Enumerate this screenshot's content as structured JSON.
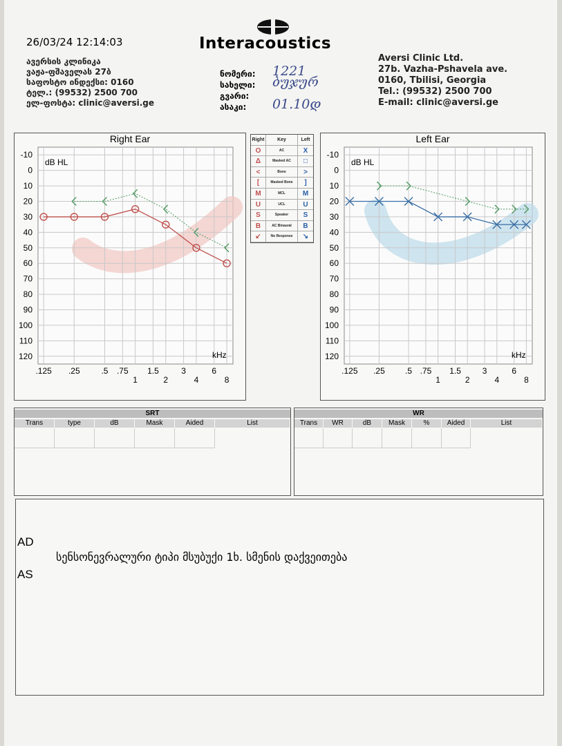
{
  "header": {
    "timestamp": "26/03/24 12:14:03",
    "logo": "Interacoustics",
    "clinic_ka": [
      "ავერსის კლინიკა",
      "ვაჟა-ფშაველას 27ბ",
      "საფოსტო ინდექსი: 0160",
      "ტელ.: (99532) 2500 700",
      "ელ-ფოსტა: clinic@aversi.ge"
    ],
    "patient_labels": [
      "ნომერი:",
      "სახელი:",
      "გვარი:",
      "ასაკი:"
    ],
    "patient_values": [
      "1221",
      "ბუჯურ",
      "",
      "01.10დ"
    ],
    "clinic_en": [
      "Aversi Clinic Ltd.",
      "27b. Vazha-Pshavela ave.",
      "0160, Tbilisi, Georgia",
      "Tel.: (99532) 2500 700",
      "E-mail: clinic@aversi.ge"
    ]
  },
  "chart_data": [
    {
      "type": "line",
      "title": "Right Ear",
      "y_label": "dB HL",
      "x_label": "kHz",
      "xscale": "log",
      "y_inverted": true,
      "grid": true,
      "xlim": [
        0.11,
        9.2
      ],
      "ylim": [
        -15,
        125
      ],
      "xticks": [
        {
          "value": 0.125,
          "label": ".125"
        },
        {
          "value": 0.25,
          "label": ".25"
        },
        {
          "value": 0.5,
          "label": ".5"
        },
        {
          "value": 0.75,
          "label": ".75"
        },
        1,
        1.5,
        2,
        3,
        4,
        6,
        8
      ],
      "yticks": [
        -10,
        0,
        10,
        20,
        30,
        40,
        50,
        60,
        70,
        80,
        90,
        100,
        110,
        120
      ],
      "band_color": "#f2c9c6",
      "series": [
        {
          "color": "#c0504d",
          "marker": "circle",
          "dashed": false,
          "x": [
            0.125,
            0.25,
            0.5,
            1,
            2,
            4,
            8
          ],
          "values": [
            30,
            30,
            30,
            25,
            35,
            50,
            60
          ]
        },
        {
          "color": "#4f9a62",
          "marker": "chevron-left",
          "dashed": true,
          "x": [
            0.25,
            0.5,
            1,
            2,
            4,
            8
          ],
          "values": [
            20,
            20,
            15,
            25,
            40,
            50
          ]
        }
      ]
    },
    {
      "type": "line",
      "title": "Left Ear",
      "y_label": "dB HL",
      "x_label": "kHz",
      "xscale": "log",
      "y_inverted": true,
      "grid": true,
      "xlim": [
        0.11,
        9.2
      ],
      "ylim": [
        -15,
        125
      ],
      "xticks": [
        {
          "value": 0.125,
          "label": ".125"
        },
        {
          "value": 0.25,
          "label": ".25"
        },
        {
          "value": 0.5,
          "label": ".5"
        },
        {
          "value": 0.75,
          "label": ".75"
        },
        1,
        1.5,
        2,
        3,
        4,
        6,
        8
      ],
      "yticks": [
        -10,
        0,
        10,
        20,
        30,
        40,
        50,
        60,
        70,
        80,
        90,
        100,
        110,
        120
      ],
      "band_color": "#bfdceb",
      "series": [
        {
          "color": "#3a6ea5",
          "marker": "x",
          "dashed": false,
          "x": [
            0.125,
            0.25,
            0.5,
            1,
            2,
            4,
            6,
            8
          ],
          "values": [
            20,
            20,
            20,
            30,
            30,
            35,
            35,
            35
          ]
        },
        {
          "color": "#4f9a62",
          "marker": "chevron-right",
          "dashed": true,
          "x": [
            0.25,
            0.5,
            2,
            4,
            6,
            8
          ],
          "values": [
            10,
            10,
            20,
            25,
            25,
            25
          ]
        }
      ]
    }
  ],
  "key": {
    "header": [
      "Right",
      "Key",
      "Left"
    ],
    "rows": [
      [
        "O",
        "AC",
        "X"
      ],
      [
        "Δ",
        "Masked AC",
        "□"
      ],
      [
        "<",
        "Bone",
        ">"
      ],
      [
        "[",
        "Masked Bone",
        "]"
      ],
      [
        "M",
        "MCL",
        "M"
      ],
      [
        "U",
        "UCL",
        "U"
      ],
      [
        "S",
        "Speaker",
        "S"
      ],
      [
        "B",
        "AC Binaural",
        "B"
      ],
      [
        "↙",
        "No Response",
        "↘"
      ]
    ]
  },
  "srt": {
    "title": "SRT",
    "columns": [
      "Trans",
      "type",
      "dB",
      "Mask",
      "Aided",
      "List"
    ]
  },
  "wr": {
    "title": "WR",
    "columns": [
      "Trans",
      "WR",
      "dB",
      "Mask",
      "%",
      "Aided",
      "List"
    ]
  },
  "notes": {
    "labels": [
      "AD",
      "AS"
    ],
    "text": "სენსონევრალური ტიპი მსუბუქი 1ხ. სმენის დაქვეითება"
  }
}
